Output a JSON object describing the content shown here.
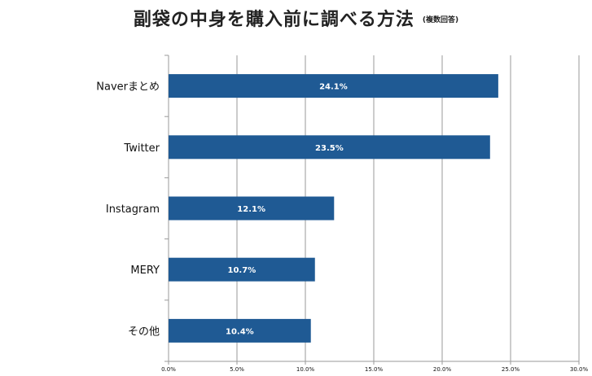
{
  "title": "副袋の中身を購入前に調べる方法",
  "subtitle": "(複数回答)",
  "chart_data": {
    "type": "bar",
    "orientation": "horizontal",
    "title": "副袋の中身を購入前に調べる方法",
    "subtitle": "(複数回答)",
    "categories": [
      "Naverまとめ",
      "Twitter",
      "Instagram",
      "MERY",
      "その他"
    ],
    "values": [
      24.1,
      23.5,
      12.1,
      10.7,
      10.4
    ],
    "data_labels": [
      "24.1%",
      "23.5%",
      "12.1%",
      "10.7%",
      "10.4%"
    ],
    "xlim": [
      0,
      30
    ],
    "xticks": [
      0,
      5,
      10,
      15,
      20,
      25,
      30
    ],
    "xtick_labels": [
      "0.0%",
      "5.0%",
      "10.0%",
      "15.0%",
      "20.0%",
      "25.0%",
      "30.0%"
    ],
    "bar_color": "#1f5a94",
    "grid": true,
    "legend": false
  }
}
